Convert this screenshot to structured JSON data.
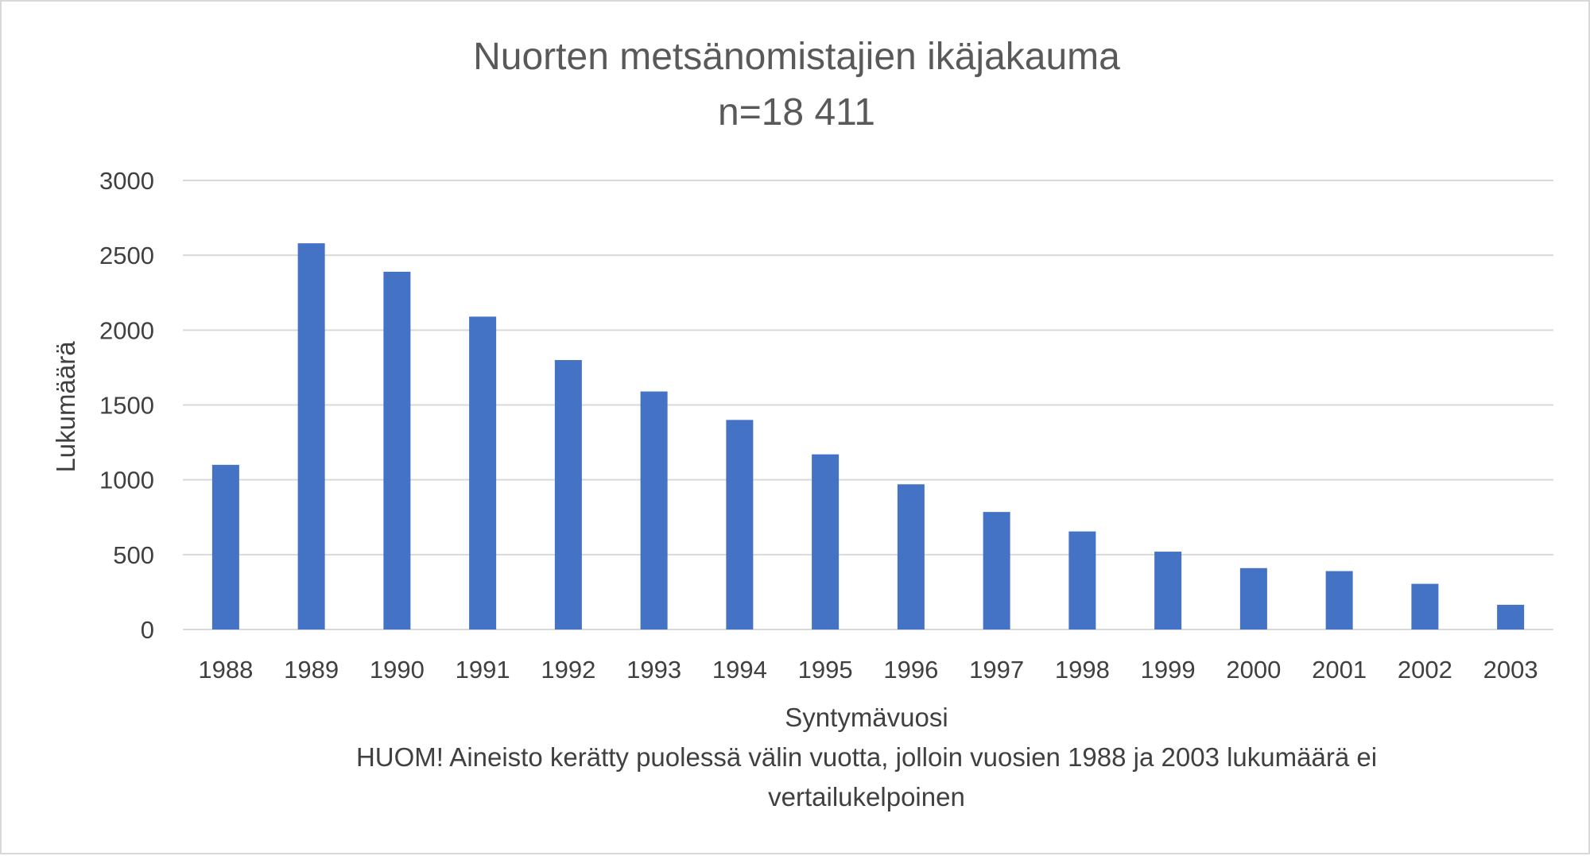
{
  "chart_data": {
    "type": "bar",
    "title": "Nuorten metsänomistajien ikäjakauma",
    "subtitle": "n=18 411",
    "xlabel": "Syntymävuosi",
    "ylabel": "Lukumäärä",
    "note_line1": "HUOM! Aineisto kerätty puolessä välin vuotta, jolloin vuosien 1988 ja 2003 lukumäärä ei",
    "note_line2": "vertailukelpoinen",
    "categories": [
      "1988",
      "1989",
      "1990",
      "1991",
      "1992",
      "1993",
      "1994",
      "1995",
      "1996",
      "1997",
      "1998",
      "1999",
      "2000",
      "2001",
      "2002",
      "2003"
    ],
    "values": [
      1100,
      2580,
      2390,
      2090,
      1800,
      1590,
      1400,
      1170,
      970,
      785,
      655,
      520,
      410,
      390,
      305,
      165
    ],
    "ylim": [
      0,
      3000
    ],
    "yticks": [
      0,
      500,
      1000,
      1500,
      2000,
      2500,
      3000
    ],
    "grid": true,
    "legend": "none",
    "bar_color": "#4472c4",
    "grid_color": "#d9d9d9"
  }
}
